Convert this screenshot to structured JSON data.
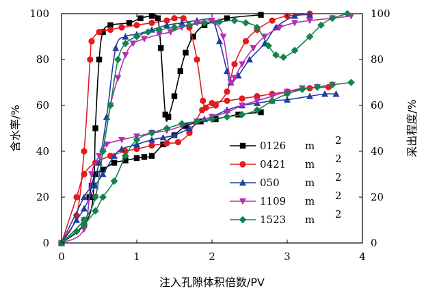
{
  "chart_data": {
    "type": "line",
    "xlabel": "注入孔隙体积倍数/PV",
    "ylabel_left": "含水率/%",
    "ylabel_right": "采出程度/%",
    "xlim": [
      0,
      4
    ],
    "ylim_left": [
      0,
      100
    ],
    "ylim_right": [
      0,
      100
    ],
    "x_ticks": [
      "0",
      "1",
      "2",
      "3",
      "4"
    ],
    "y_ticks_left": [
      "0",
      "20",
      "40",
      "60",
      "80",
      "100"
    ],
    "y_ticks_right": [
      "0",
      "20",
      "40",
      "60",
      "80",
      "100"
    ],
    "legend_position": "center-right",
    "series": [
      {
        "name": "0126",
        "unit": "m",
        "unit_sup": "2",
        "color": "#000000",
        "marker": "square",
        "water_cut": [
          [
            0,
            0
          ],
          [
            0.3,
            8
          ],
          [
            0.42,
            20
          ],
          [
            0.45,
            50
          ],
          [
            0.5,
            80
          ],
          [
            0.55,
            92
          ],
          [
            0.65,
            95
          ],
          [
            0.9,
            96
          ],
          [
            1.05,
            98
          ],
          [
            1.2,
            99
          ],
          [
            1.28,
            98
          ],
          [
            1.32,
            85
          ],
          [
            1.38,
            56
          ],
          [
            1.42,
            55
          ],
          [
            1.5,
            64
          ],
          [
            1.58,
            75
          ],
          [
            1.65,
            83
          ],
          [
            1.75,
            90
          ],
          [
            1.9,
            95
          ],
          [
            2.2,
            98
          ],
          [
            2.65,
            99.5
          ]
        ],
        "recovery": [
          [
            0,
            0
          ],
          [
            0.3,
            8
          ],
          [
            0.37,
            20
          ],
          [
            0.4,
            25
          ],
          [
            0.45,
            30
          ],
          [
            0.55,
            32
          ],
          [
            0.7,
            35
          ],
          [
            0.85,
            36
          ],
          [
            1.0,
            37
          ],
          [
            1.1,
            37.5
          ],
          [
            1.2,
            38
          ],
          [
            1.35,
            43
          ],
          [
            1.5,
            47
          ],
          [
            1.65,
            51
          ],
          [
            1.85,
            53
          ],
          [
            2.05,
            54
          ],
          [
            2.35,
            56
          ],
          [
            2.65,
            57
          ]
        ]
      },
      {
        "name": "0421",
        "unit": "m",
        "unit_sup": "2",
        "color": "#e41a1c",
        "marker": "circle",
        "water_cut": [
          [
            0,
            0
          ],
          [
            0.2,
            12
          ],
          [
            0.3,
            40
          ],
          [
            0.38,
            80
          ],
          [
            0.4,
            88
          ],
          [
            0.5,
            92
          ],
          [
            0.65,
            93
          ],
          [
            0.8,
            94
          ],
          [
            1.0,
            95
          ],
          [
            1.2,
            96
          ],
          [
            1.4,
            97
          ],
          [
            1.5,
            98
          ],
          [
            1.62,
            98
          ],
          [
            1.7,
            94
          ],
          [
            1.8,
            80
          ],
          [
            1.88,
            62
          ],
          [
            1.92,
            59
          ],
          [
            2.05,
            60
          ],
          [
            2.2,
            66
          ],
          [
            2.3,
            78
          ],
          [
            2.45,
            88
          ],
          [
            2.6,
            93
          ],
          [
            2.8,
            97
          ],
          [
            3.0,
            99
          ],
          [
            3.3,
            100
          ]
        ],
        "recovery": [
          [
            0,
            0
          ],
          [
            0.2,
            20
          ],
          [
            0.3,
            30
          ],
          [
            0.45,
            35
          ],
          [
            0.65,
            38
          ],
          [
            0.85,
            40
          ],
          [
            1.0,
            41
          ],
          [
            1.2,
            42.5
          ],
          [
            1.4,
            43.5
          ],
          [
            1.55,
            44
          ],
          [
            1.7,
            48
          ],
          [
            1.87,
            58
          ],
          [
            2.0,
            61
          ],
          [
            2.2,
            62
          ],
          [
            2.4,
            63
          ],
          [
            2.6,
            64
          ],
          [
            2.8,
            65
          ],
          [
            3.0,
            66
          ],
          [
            3.3,
            67.5
          ],
          [
            3.55,
            68
          ]
        ]
      },
      {
        "name": "050",
        "unit": "m",
        "unit_sup": "2",
        "color": "#1f3e9e",
        "marker": "triangle-up",
        "water_cut": [
          [
            0,
            0
          ],
          [
            0.3,
            20
          ],
          [
            0.4,
            25
          ],
          [
            0.5,
            35
          ],
          [
            0.6,
            55
          ],
          [
            0.72,
            85
          ],
          [
            0.85,
            90
          ],
          [
            1.0,
            91
          ],
          [
            1.2,
            93
          ],
          [
            1.4,
            95
          ],
          [
            1.6,
            96
          ],
          [
            1.8,
            97
          ],
          [
            2.0,
            97
          ],
          [
            2.1,
            88
          ],
          [
            2.2,
            75
          ],
          [
            2.25,
            70
          ],
          [
            2.35,
            73
          ],
          [
            2.5,
            80
          ],
          [
            2.7,
            87
          ],
          [
            2.85,
            94
          ],
          [
            3.1,
            99
          ],
          [
            3.3,
            99.5
          ]
        ],
        "recovery": [
          [
            0,
            0
          ],
          [
            0.2,
            10
          ],
          [
            0.3,
            15
          ],
          [
            0.45,
            25
          ],
          [
            0.55,
            30
          ],
          [
            0.7,
            38
          ],
          [
            0.8,
            41
          ],
          [
            1.0,
            43
          ],
          [
            1.2,
            45
          ],
          [
            1.35,
            46
          ],
          [
            1.5,
            47
          ],
          [
            1.7,
            50
          ],
          [
            1.9,
            54
          ],
          [
            2.0,
            55
          ],
          [
            2.2,
            58
          ],
          [
            2.4,
            60
          ],
          [
            2.6,
            61
          ],
          [
            2.8,
            62
          ],
          [
            3.0,
            62.5
          ],
          [
            3.3,
            64
          ],
          [
            3.5,
            65
          ],
          [
            3.65,
            65
          ]
        ]
      },
      {
        "name": "1109",
        "unit": "m",
        "unit_sup": "2",
        "color": "#b32fb3",
        "marker": "triangle-down",
        "water_cut": [
          [
            0,
            0
          ],
          [
            0.3,
            10
          ],
          [
            0.45,
            20
          ],
          [
            0.55,
            40
          ],
          [
            0.65,
            60
          ],
          [
            0.75,
            72
          ],
          [
            0.85,
            82
          ],
          [
            0.95,
            87
          ],
          [
            1.1,
            89
          ],
          [
            1.3,
            91
          ],
          [
            1.45,
            92
          ],
          [
            1.6,
            94
          ],
          [
            1.8,
            96
          ],
          [
            2.0,
            97
          ],
          [
            2.05,
            96
          ],
          [
            2.15,
            90
          ],
          [
            2.25,
            70
          ],
          [
            2.3,
            72
          ],
          [
            2.4,
            78
          ],
          [
            2.55,
            85
          ],
          [
            2.7,
            90
          ],
          [
            2.9,
            94
          ],
          [
            3.1,
            96
          ],
          [
            3.3,
            97
          ],
          [
            3.6,
            98
          ],
          [
            3.85,
            99
          ]
        ],
        "recovery": [
          [
            0,
            0
          ],
          [
            0.3,
            6
          ],
          [
            0.4,
            30
          ],
          [
            0.5,
            38
          ],
          [
            0.6,
            43
          ],
          [
            0.8,
            45
          ],
          [
            1.0,
            46.5
          ],
          [
            1.2,
            48
          ],
          [
            1.4,
            49
          ],
          [
            1.6,
            51
          ],
          [
            1.8,
            53
          ],
          [
            2.0,
            55
          ],
          [
            2.2,
            57
          ],
          [
            2.4,
            60
          ],
          [
            2.6,
            62
          ],
          [
            2.8,
            64
          ],
          [
            3.0,
            66
          ],
          [
            3.2,
            67.5
          ],
          [
            3.4,
            68
          ],
          [
            3.6,
            69
          ]
        ]
      },
      {
        "name": "1523",
        "unit": "m",
        "unit_sup": "2",
        "color": "#12834b",
        "marker": "diamond",
        "water_cut": [
          [
            0,
            0
          ],
          [
            0.3,
            10
          ],
          [
            0.45,
            20
          ],
          [
            0.55,
            40
          ],
          [
            0.65,
            60
          ],
          [
            0.75,
            80
          ],
          [
            0.85,
            87
          ],
          [
            1.0,
            90
          ],
          [
            1.15,
            92
          ],
          [
            1.3,
            93
          ],
          [
            1.5,
            94
          ],
          [
            1.7,
            95
          ],
          [
            1.9,
            96
          ],
          [
            2.1,
            96.5
          ],
          [
            2.3,
            97
          ],
          [
            2.45,
            96
          ],
          [
            2.6,
            94
          ],
          [
            2.75,
            86
          ],
          [
            2.85,
            82
          ],
          [
            2.95,
            81
          ],
          [
            3.1,
            84
          ],
          [
            3.3,
            90
          ],
          [
            3.45,
            95
          ],
          [
            3.6,
            98
          ],
          [
            3.8,
            100
          ]
        ],
        "recovery": [
          [
            0,
            0
          ],
          [
            0.2,
            5
          ],
          [
            0.3,
            8
          ],
          [
            0.45,
            14
          ],
          [
            0.55,
            20
          ],
          [
            0.7,
            27
          ],
          [
            0.85,
            38
          ],
          [
            1.0,
            45
          ],
          [
            1.2,
            48
          ],
          [
            1.4,
            50
          ],
          [
            1.6,
            52
          ],
          [
            1.8,
            53
          ],
          [
            2.0,
            54
          ],
          [
            2.2,
            55
          ],
          [
            2.4,
            56
          ],
          [
            2.6,
            58
          ],
          [
            2.8,
            62
          ],
          [
            3.0,
            65
          ],
          [
            3.2,
            67
          ],
          [
            3.4,
            68
          ],
          [
            3.6,
            69
          ],
          [
            3.85,
            70
          ]
        ]
      }
    ]
  }
}
